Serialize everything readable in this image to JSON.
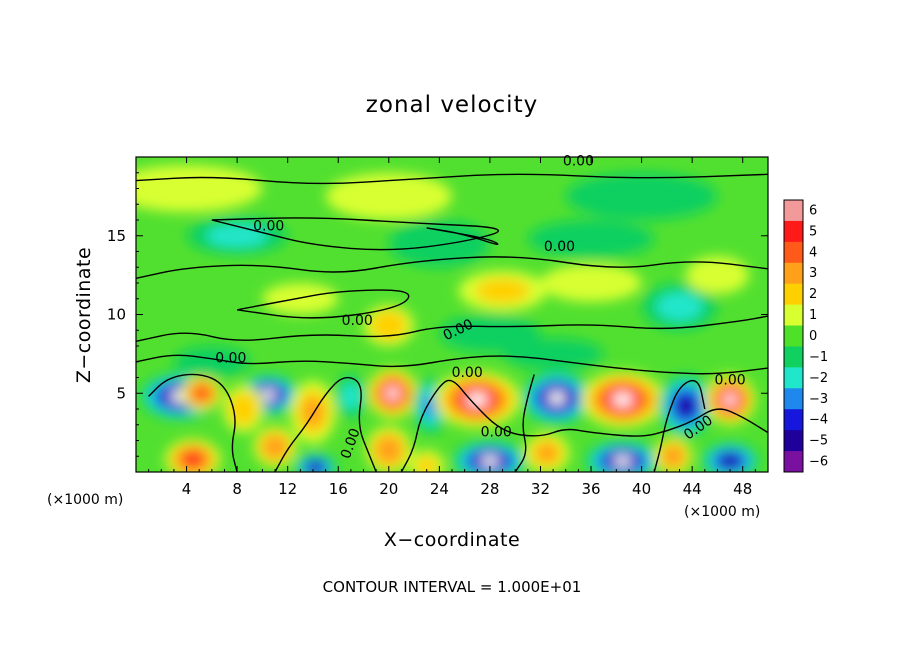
{
  "chart_data": {
    "type": "heatmap",
    "title": "zonal velocity",
    "xlabel": "X−coordinate",
    "ylabel": "Z−coordinate",
    "x_unit": "(×1000 m)",
    "y_unit": "(×1000 m)",
    "xlim": [
      0,
      50
    ],
    "ylim": [
      0,
      20
    ],
    "x_ticks": [
      "4",
      "8",
      "12",
      "16",
      "20",
      "24",
      "28",
      "32",
      "36",
      "40",
      "44",
      "48"
    ],
    "x_tick_values": [
      4,
      8,
      12,
      16,
      20,
      24,
      28,
      32,
      36,
      40,
      44,
      48
    ],
    "y_ticks": [
      "5",
      "10",
      "15"
    ],
    "y_tick_values": [
      5,
      10,
      15
    ],
    "colorbar": {
      "labels": [
        "6",
        "5",
        "4",
        "3",
        "2",
        "1",
        "0",
        "−1",
        "−2",
        "−3",
        "−4",
        "−5",
        "−6"
      ],
      "colors": [
        "#f29a9a",
        "#ff1a1a",
        "#ff5a1a",
        "#ffa01a",
        "#ffd000",
        "#d8ff30",
        "#4fe02a",
        "#10d060",
        "#20e6cc",
        "#1e88ee",
        "#1616dd",
        "#20009a",
        "#7a10a0"
      ]
    },
    "contour_labels": [
      "0.00",
      "0.00",
      "0.00",
      "0.00",
      "0.00",
      "0.00",
      "0.00",
      "0.00",
      "0.00",
      "0.00",
      "0.00"
    ],
    "contour_level": 0.0,
    "note": "CONTOUR INTERVAL = 1.000E+01",
    "cells": [
      {
        "x": 3.5,
        "z": 4.8,
        "value": -5.5,
        "sx": 3.2,
        "sz": 1.5
      },
      {
        "x": 5.2,
        "z": 5.0,
        "value": 4.5,
        "sx": 1.6,
        "sz": 1.1
      },
      {
        "x": 10.5,
        "z": 4.9,
        "value": -6,
        "sx": 2.4,
        "sz": 1.3
      },
      {
        "x": 8.5,
        "z": 4.0,
        "value": 2.5,
        "sx": 1.6,
        "sz": 1.5
      },
      {
        "x": 14.0,
        "z": 3.8,
        "value": 3,
        "sx": 1.8,
        "sz": 2.0
      },
      {
        "x": 20.3,
        "z": 5.0,
        "value": 6,
        "sx": 2.0,
        "sz": 1.6
      },
      {
        "x": 17.0,
        "z": 4.8,
        "value": -1.5,
        "sx": 1.3,
        "sz": 1.4
      },
      {
        "x": 23.3,
        "z": 4.2,
        "value": -2.5,
        "sx": 1.4,
        "sz": 1.8
      },
      {
        "x": 27.0,
        "z": 4.6,
        "value": 6,
        "sx": 3.4,
        "sz": 1.8
      },
      {
        "x": 33.3,
        "z": 4.7,
        "value": -6,
        "sx": 2.8,
        "sz": 1.7
      },
      {
        "x": 38.5,
        "z": 4.6,
        "value": 6,
        "sx": 3.3,
        "sz": 1.8
      },
      {
        "x": 43.5,
        "z": 4.2,
        "value": -4.5,
        "sx": 2.2,
        "sz": 2.0
      },
      {
        "x": 47.0,
        "z": 4.6,
        "value": 5.5,
        "sx": 2.0,
        "sz": 1.6
      },
      {
        "x": 4.5,
        "z": 0.8,
        "value": 5,
        "sx": 2.2,
        "sz": 1.3
      },
      {
        "x": 11.0,
        "z": 1.6,
        "value": 3.5,
        "sx": 1.7,
        "sz": 1.3
      },
      {
        "x": 14.2,
        "z": 0.3,
        "value": -5,
        "sx": 1.7,
        "sz": 0.9
      },
      {
        "x": 20.0,
        "z": 1.4,
        "value": 3.5,
        "sx": 1.8,
        "sz": 1.5
      },
      {
        "x": 28.0,
        "z": 0.7,
        "value": -5.5,
        "sx": 3.0,
        "sz": 1.3
      },
      {
        "x": 32.5,
        "z": 1.2,
        "value": 3,
        "sx": 1.8,
        "sz": 1.3
      },
      {
        "x": 38.5,
        "z": 0.7,
        "value": -5.5,
        "sx": 3.0,
        "sz": 1.3
      },
      {
        "x": 42.5,
        "z": 1.0,
        "value": 3.5,
        "sx": 1.5,
        "sz": 1.2
      },
      {
        "x": 47.0,
        "z": 0.7,
        "value": -5,
        "sx": 2.3,
        "sz": 1.2
      },
      {
        "x": 23.0,
        "z": 0.4,
        "value": 2,
        "sx": 1.4,
        "sz": 1.0
      },
      {
        "x": 8.0,
        "z": 15.0,
        "value": -1.5,
        "sx": 4.0,
        "sz": 1.2
      },
      {
        "x": 24.0,
        "z": 14.5,
        "value": -1.2,
        "sx": 4.0,
        "sz": 1.5
      },
      {
        "x": 36.0,
        "z": 14.8,
        "value": -1,
        "sx": 5.0,
        "sz": 1.2
      },
      {
        "x": 29.0,
        "z": 11.5,
        "value": 1.8,
        "sx": 3.5,
        "sz": 1.3
      },
      {
        "x": 36.0,
        "z": 12.0,
        "value": 1.2,
        "sx": 4.0,
        "sz": 1.2
      },
      {
        "x": 20.0,
        "z": 9.3,
        "value": 2.5,
        "sx": 2.0,
        "sz": 1.3
      },
      {
        "x": 13.0,
        "z": 11.0,
        "value": 1.2,
        "sx": 3.0,
        "sz": 1.0
      },
      {
        "x": 28.0,
        "z": 8.8,
        "value": -1.3,
        "sx": 4.0,
        "sz": 1.2
      },
      {
        "x": 43.0,
        "z": 10.5,
        "value": -1.5,
        "sx": 3.0,
        "sz": 1.5
      },
      {
        "x": 46.0,
        "z": 12.5,
        "value": 1,
        "sx": 2.5,
        "sz": 1.2
      },
      {
        "x": 6.0,
        "z": 7.0,
        "value": -1.2,
        "sx": 3.0,
        "sz": 1.0
      },
      {
        "x": 33.0,
        "z": 7.5,
        "value": -1,
        "sx": 4.0,
        "sz": 1.0
      },
      {
        "x": 4.0,
        "z": 18.0,
        "value": 0.8,
        "sx": 6.0,
        "sz": 1.5
      },
      {
        "x": 40.0,
        "z": 17.5,
        "value": -0.8,
        "sx": 6.0,
        "sz": 1.5
      },
      {
        "x": 20.0,
        "z": 17.5,
        "value": 0.7,
        "sx": 5.0,
        "sz": 1.5
      }
    ]
  }
}
